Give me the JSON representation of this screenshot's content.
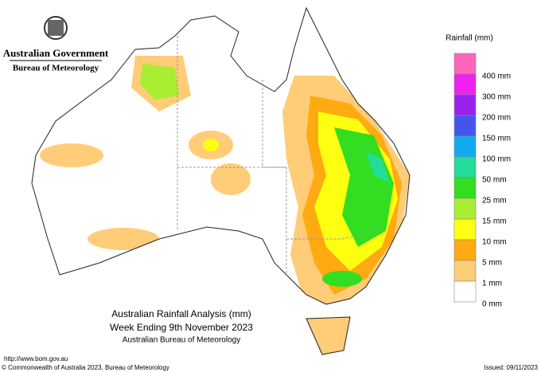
{
  "header": {
    "government": "Australian Government",
    "agency": "Bureau of Meteorology"
  },
  "legend": {
    "title": "Rainfall (mm)",
    "items": [
      {
        "color": "#ff66bb",
        "label": "400 mm"
      },
      {
        "color": "#ee22ee",
        "label": "300 mm"
      },
      {
        "color": "#9922ee",
        "label": "200 mm"
      },
      {
        "color": "#4455ee",
        "label": "150 mm"
      },
      {
        "color": "#11aaee",
        "label": "100 mm"
      },
      {
        "color": "#22dd99",
        "label": "50 mm"
      },
      {
        "color": "#33dd22",
        "label": "25 mm"
      },
      {
        "color": "#aaee33",
        "label": "15 mm"
      },
      {
        "color": "#ffff11",
        "label": "10 mm"
      },
      {
        "color": "#ffaa11",
        "label": "5 mm"
      },
      {
        "color": "#ffcc77",
        "label": "1 mm"
      },
      {
        "color": "#ffffff",
        "label": "0 mm"
      }
    ]
  },
  "title": {
    "line1": "Australian Rainfall Analysis (mm)",
    "line2": "Week Ending 9th November 2023",
    "line3": "Australian Bureau of Meteorology"
  },
  "footer": {
    "url": "http://www.bom.gov.au",
    "copyright": "© Commonwealth of Australia 2023, Bureau of Meteorology",
    "issued": "Issued: 09/11/2023"
  }
}
